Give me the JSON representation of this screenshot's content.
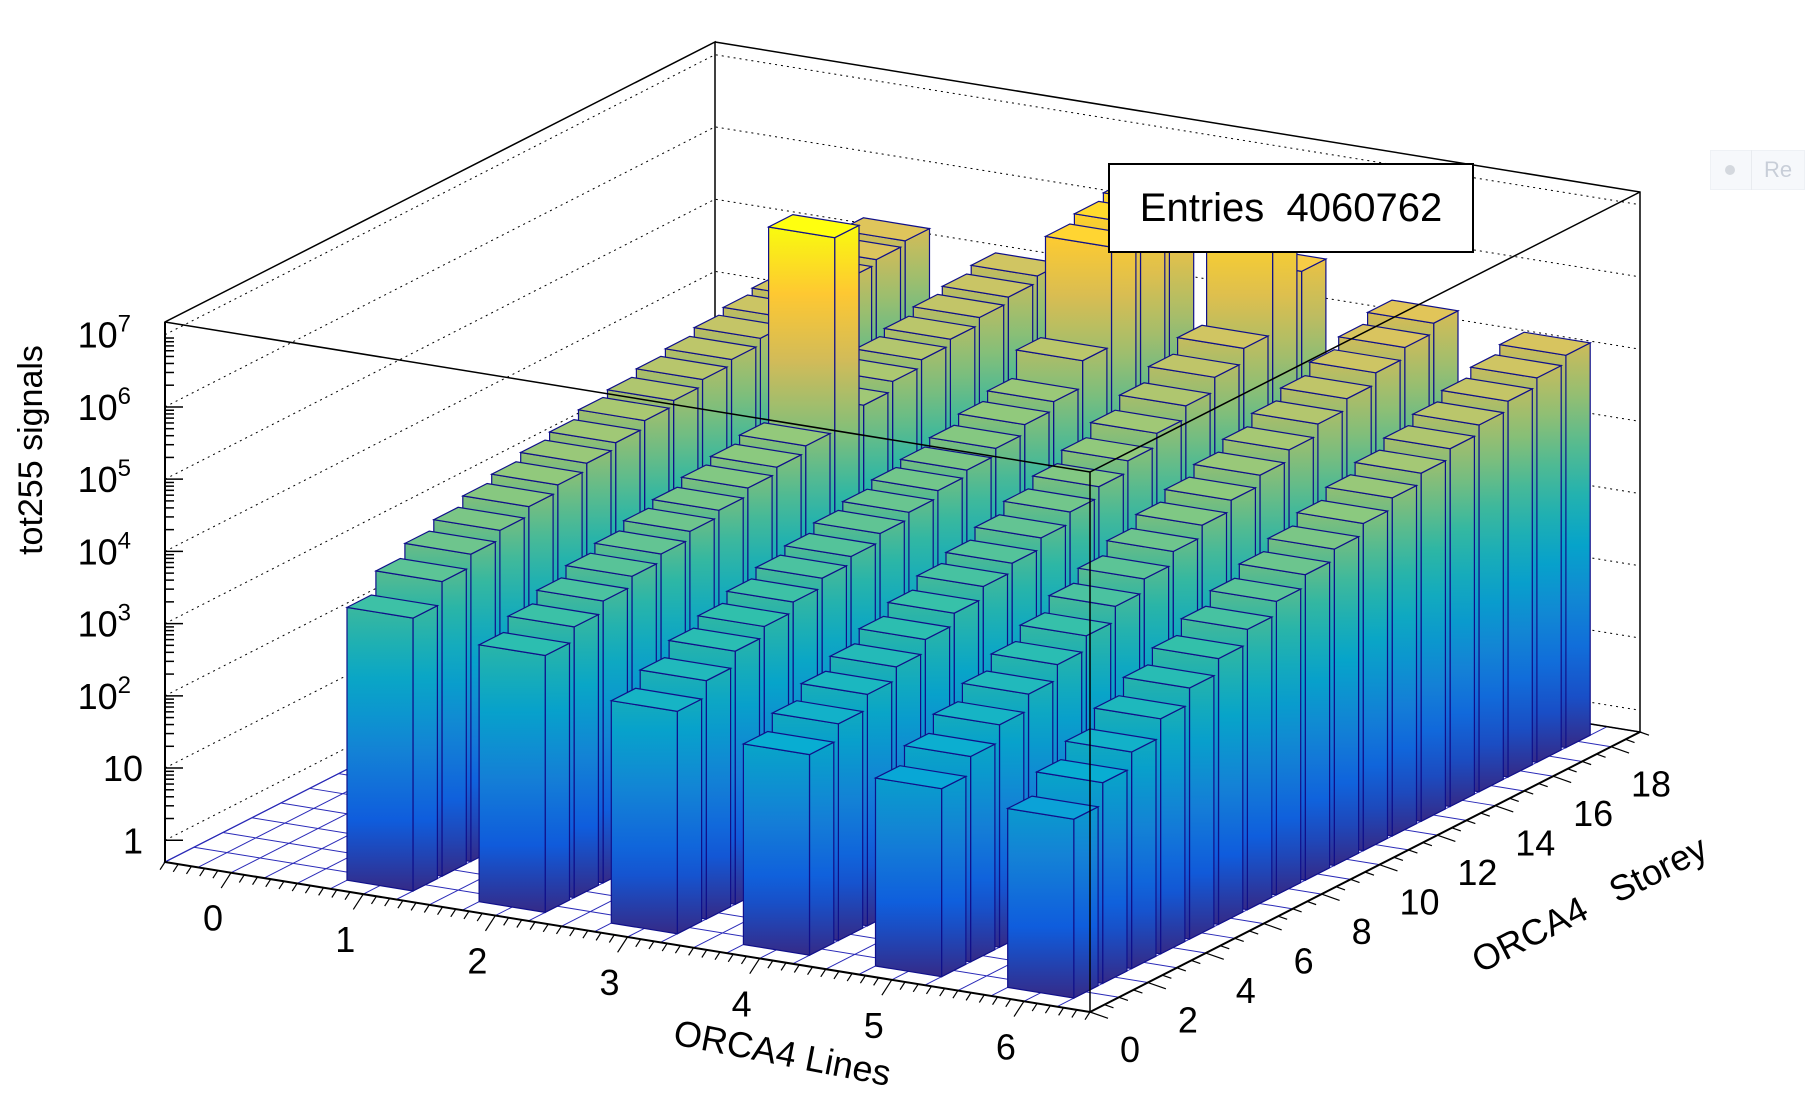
{
  "chart_data": {
    "type": "bar3d",
    "title": "",
    "stats": {
      "label": "Entries",
      "value": "4060762"
    },
    "xlabel": "ORCA4 Lines",
    "ylabel": "ORCA4   Storey",
    "zlabel": "tot255 signals",
    "x_ticks": [
      "0",
      "1",
      "2",
      "3",
      "4",
      "5",
      "6"
    ],
    "y_ticks": [
      "0",
      "2",
      "4",
      "6",
      "8",
      "10",
      "12",
      "14",
      "16",
      "18"
    ],
    "z_ticks": [
      {
        "base": "1",
        "exp": ""
      },
      {
        "base": "10",
        "exp": ""
      },
      {
        "base": "10",
        "exp": "2"
      },
      {
        "base": "10",
        "exp": "3"
      },
      {
        "base": "10",
        "exp": "4"
      },
      {
        "base": "10",
        "exp": "5"
      },
      {
        "base": "10",
        "exp": "6"
      },
      {
        "base": "10",
        "exp": "7"
      }
    ],
    "z_scale": "log",
    "zlim": [
      0.5,
      15000000
    ],
    "xlim": [
      -0.5,
      6.5
    ],
    "ylim": [
      0,
      19
    ],
    "grid": true,
    "palette": [
      "#352a87",
      "#0f5cdd",
      "#1481d6",
      "#06a4ca",
      "#2eb7a4",
      "#87bf77",
      "#d1bb59",
      "#fec832",
      "#f9fb0e"
    ],
    "bars": [
      {
        "line": 1,
        "storeys": [
          1,
          2,
          3,
          4,
          5,
          6,
          7,
          8,
          9,
          10,
          11,
          12,
          13,
          14,
          15,
          16,
          17,
          18
        ],
        "values": [
          3000,
          6000,
          9000,
          12000,
          16000,
          20000,
          25000,
          30000,
          38000,
          45000,
          55000,
          65000,
          80000,
          95000,
          110000,
          130000,
          150000,
          170000
        ]
      },
      {
        "line": 2,
        "storeys": [
          1,
          2,
          3,
          4,
          5,
          6,
          7,
          8,
          9,
          10,
          11,
          12,
          13,
          14,
          15,
          16,
          17,
          18
        ],
        "values": [
          1800,
          2800,
          4000,
          5500,
          7000,
          9000,
          11000,
          14000,
          17000,
          21000,
          10000000,
          30000,
          40000,
          50000,
          60000,
          75000,
          90000,
          110000
        ]
      },
      {
        "line": 3,
        "storeys": [
          1,
          2,
          3,
          4,
          5,
          6,
          7,
          8,
          9,
          10,
          11,
          12,
          13,
          14,
          15,
          16,
          17,
          18
        ],
        "values": [
          600,
          1000,
          1600,
          2200,
          3000,
          4000,
          5000,
          6500,
          8000,
          10000,
          12000,
          15000,
          20000,
          26000,
          60000,
          1400000,
          1800000,
          2200000
        ]
      },
      {
        "line": 4,
        "storeys": [
          1,
          2,
          3,
          4,
          5,
          6,
          7,
          8,
          9,
          10,
          11,
          12,
          13,
          14,
          15,
          16,
          17,
          18
        ],
        "values": [
          300,
          500,
          800,
          1200,
          1800,
          2600,
          3800,
          5000,
          7000,
          10000,
          14000,
          20000,
          30000,
          45000,
          70000,
          110000,
          1800000,
          500000
        ]
      },
      {
        "line": 5,
        "storeys": [
          1,
          2,
          3,
          4,
          5,
          6,
          7,
          8,
          9,
          10,
          11,
          12,
          13,
          14,
          15,
          16,
          17,
          18
        ],
        "values": [
          200,
          350,
          600,
          1000,
          1600,
          2500,
          4000,
          6000,
          9000,
          13000,
          18000,
          25000,
          35000,
          50000,
          70000,
          100000,
          140000,
          190000
        ]
      },
      {
        "line": 6,
        "storeys": [
          1,
          2,
          3,
          4,
          5,
          6,
          7,
          8,
          9,
          10,
          11,
          12,
          13,
          14,
          15,
          16,
          17,
          18
        ],
        "values": [
          150,
          300,
          500,
          900,
          1500,
          2400,
          3800,
          5800,
          8500,
          12000,
          17000,
          24000,
          33000,
          45000,
          60000,
          80000,
          105000,
          135000
        ]
      }
    ]
  },
  "corner_widget": {
    "label": "Re"
  }
}
